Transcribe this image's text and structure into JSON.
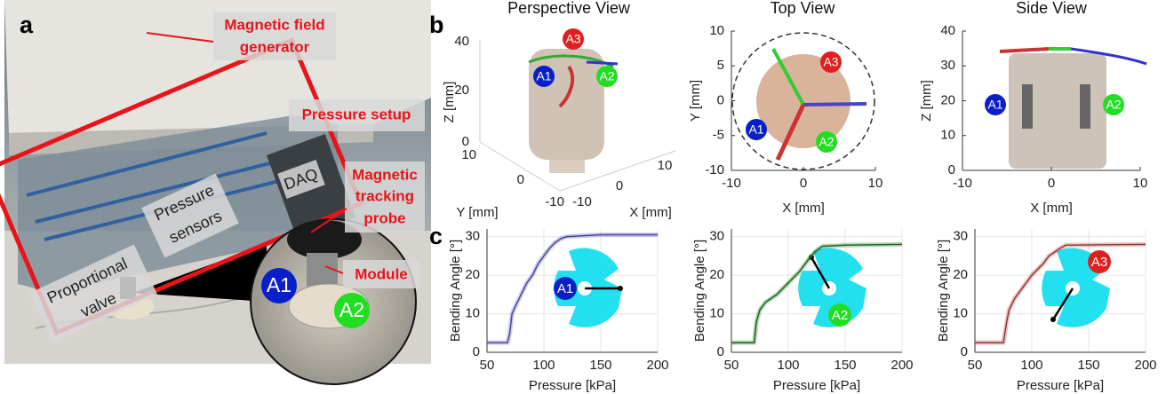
{
  "figure": {
    "panel_a": {
      "label": "a",
      "annotations": [
        [
          "Magnetic field",
          "generator"
        ],
        [
          "Pressure setup"
        ],
        [
          "DAQ"
        ],
        [
          "Magnetic",
          "tracking",
          "probe"
        ],
        [
          "Module"
        ],
        [
          "Proportional",
          "valve"
        ],
        [
          "Pressure",
          "sensors"
        ]
      ],
      "markers": [
        "A1",
        "A2"
      ]
    },
    "panel_b": {
      "label": "b",
      "views": [
        {
          "title": "Perspective View",
          "xlabel": "X [mm]",
          "ylabel": "Y [mm]",
          "zlabel": "Z [mm]",
          "xticks": [
            -10,
            0,
            10
          ],
          "yticks": [
            10,
            0,
            -10
          ],
          "zticks": [
            0,
            20,
            40
          ],
          "markers": [
            "A1",
            "A2",
            "A3"
          ]
        },
        {
          "title": "Top View",
          "xlabel": "X [mm]",
          "ylabel": "Y [mm]",
          "xlim": [
            -10,
            10
          ],
          "ylim": [
            -10,
            10
          ],
          "xticks": [
            -10,
            0,
            10
          ],
          "yticks": [
            -10,
            -5,
            0,
            5,
            10
          ],
          "markers": [
            "A1",
            "A2",
            "A3"
          ]
        },
        {
          "title": "Side View",
          "xlabel": "X [mm]",
          "ylabel": "Z [mm]",
          "xlim": [
            -10,
            10
          ],
          "ylim": [
            0,
            40
          ],
          "xticks": [
            -10,
            0,
            10
          ],
          "yticks": [
            0,
            10,
            20,
            30,
            40
          ],
          "markers": [
            "A1",
            "A2"
          ]
        }
      ]
    },
    "panel_c": {
      "label": "c"
    }
  },
  "chart_data": [
    {
      "type": "line",
      "xlabel": "Pressure [kPa]",
      "ylabel": "Bending Angle [°]",
      "xlim": [
        50,
        200
      ],
      "ylim": [
        0,
        32
      ],
      "xticks": [
        50,
        100,
        150,
        200
      ],
      "yticks": [
        0,
        10,
        20,
        30
      ],
      "x": [
        50,
        60,
        68,
        70,
        72,
        75,
        80,
        85,
        90,
        95,
        100,
        105,
        110,
        115,
        120,
        150,
        200
      ],
      "series": [
        {
          "color": "#6a6ad0",
          "values": [
            2.5,
            2.5,
            2.5,
            5,
            10,
            12,
            15,
            18,
            20,
            23,
            25,
            27,
            28.5,
            29.5,
            30,
            30.5,
            30.5
          ]
        }
      ],
      "marker": "A1",
      "marker_color": "#0a1fc8"
    },
    {
      "type": "line",
      "xlabel": "Pressure [kPa]",
      "ylabel": "Bending Angle [°]",
      "xlim": [
        50,
        200
      ],
      "ylim": [
        0,
        32
      ],
      "xticks": [
        50,
        100,
        150,
        200
      ],
      "yticks": [
        0,
        10,
        20,
        30
      ],
      "x": [
        50,
        60,
        70,
        72,
        75,
        80,
        90,
        100,
        110,
        120,
        125,
        130,
        150,
        200
      ],
      "series": [
        {
          "color": "#2f8a2f",
          "values": [
            2.5,
            2.5,
            2.5,
            8,
            11,
            13,
            15,
            18,
            21,
            25,
            26.5,
            27.5,
            27.8,
            28
          ]
        }
      ],
      "marker": "A2",
      "marker_color": "#22dd22"
    },
    {
      "type": "line",
      "xlabel": "Pressure [kPa]",
      "ylabel": "Bending Angle [°]",
      "xlim": [
        50,
        200
      ],
      "ylim": [
        0,
        32
      ],
      "xticks": [
        50,
        100,
        150,
        200
      ],
      "yticks": [
        0,
        10,
        20,
        30
      ],
      "x": [
        50,
        60,
        70,
        75,
        78,
        80,
        85,
        90,
        100,
        110,
        115,
        120,
        125,
        130,
        200
      ],
      "series": [
        {
          "color": "#c85050",
          "values": [
            2.5,
            2.5,
            2.5,
            2.5,
            8,
            11,
            14,
            16,
            20,
            23,
            25,
            26,
            27,
            27.8,
            28
          ]
        }
      ],
      "marker": "A3",
      "marker_color": "#e02020"
    }
  ]
}
